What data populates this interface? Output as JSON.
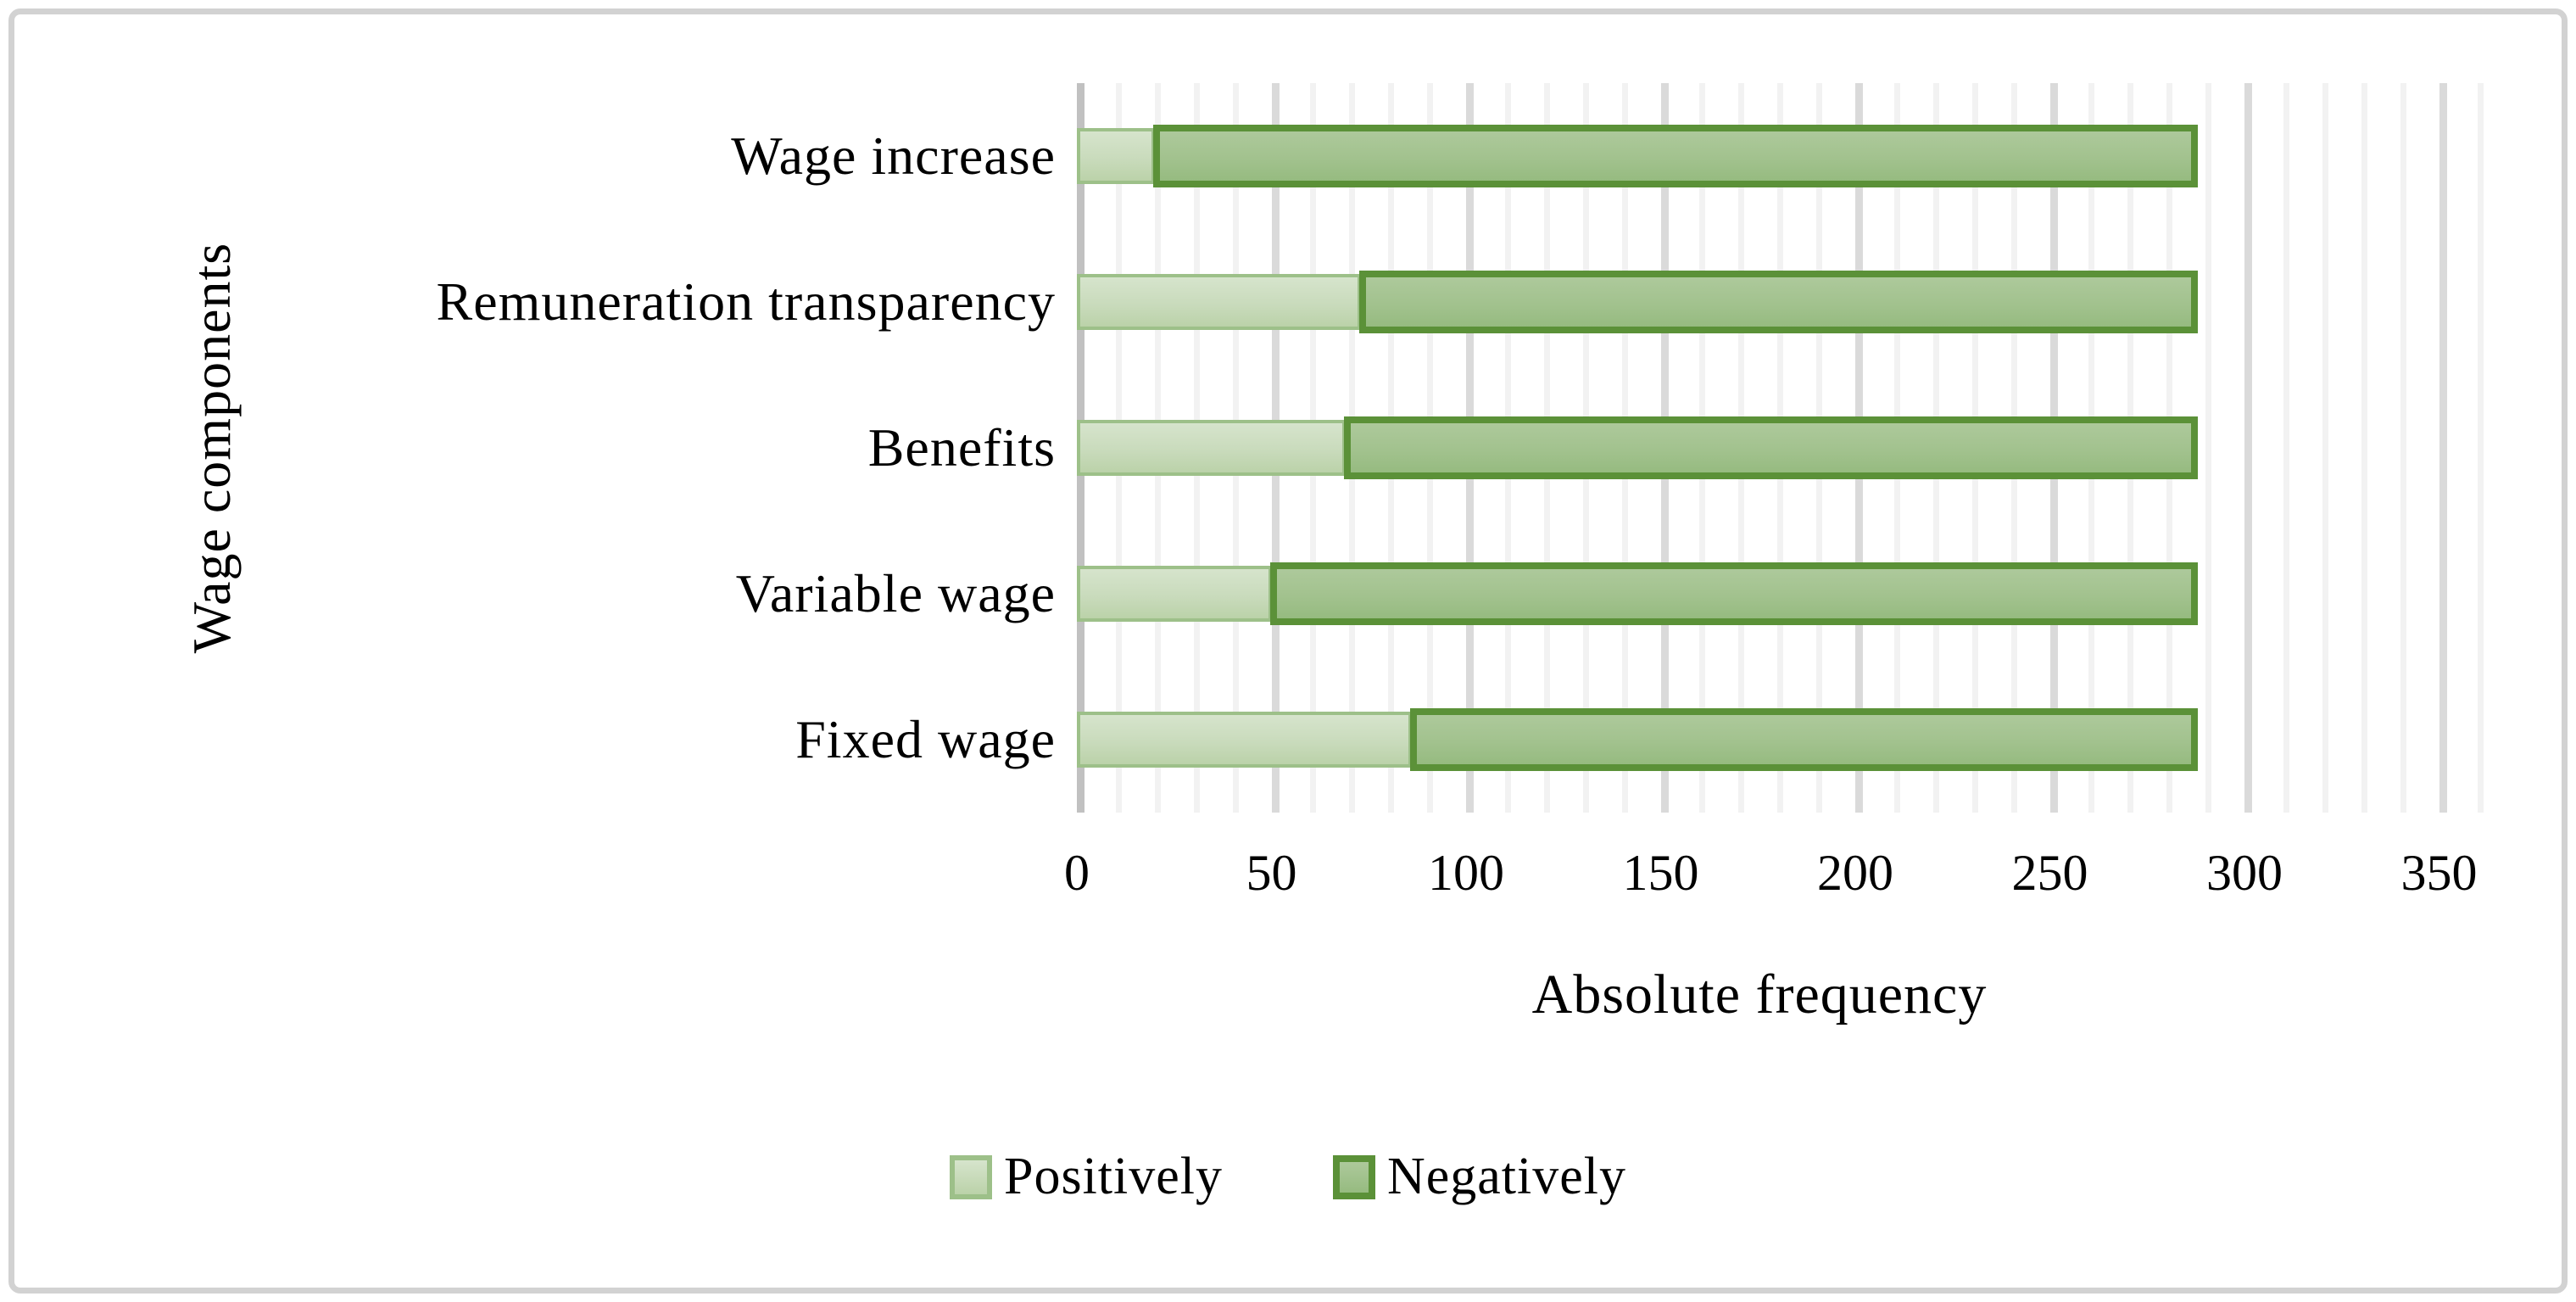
{
  "chart_data": {
    "type": "bar",
    "orientation": "horizontal",
    "stacked": true,
    "xlabel": "Absolute frequency",
    "ylabel": "Wage components",
    "categories": [
      "Wage increase",
      "Remuneration transparency",
      "Benefits",
      "Variable wage",
      "Fixed wage"
    ],
    "series": [
      {
        "name": "Positively",
        "values": [
          20,
          73,
          69,
          50,
          86
        ]
      },
      {
        "name": "Negatively",
        "values": [
          268,
          215,
          219,
          238,
          202
        ]
      }
    ],
    "stack_totals": [
      288,
      288,
      288,
      288,
      288
    ],
    "xlim": [
      0,
      350
    ],
    "xticks": [
      0,
      50,
      100,
      150,
      200,
      250,
      300,
      350
    ],
    "minor_gridline_unit": 10,
    "major_gridline_unit": 50,
    "gridline_extent": 360,
    "grid": true,
    "legend_position": "bottom",
    "colors": {
      "positively_fill_top": "#d6e4cc",
      "positively_fill_bottom": "#bbd2a9",
      "positively_border": "#9dc089",
      "negatively_fill_top": "#adc99b",
      "negatively_fill_bottom": "#96bb80",
      "negatively_border": "#5b9138",
      "minor_gridline": "#f2f2f2",
      "major_gridline": "#dadada",
      "axis_line": "#c1c1c1",
      "text": "#000000",
      "frame_border": "#d2d2d2",
      "background": "#ffffff"
    }
  }
}
